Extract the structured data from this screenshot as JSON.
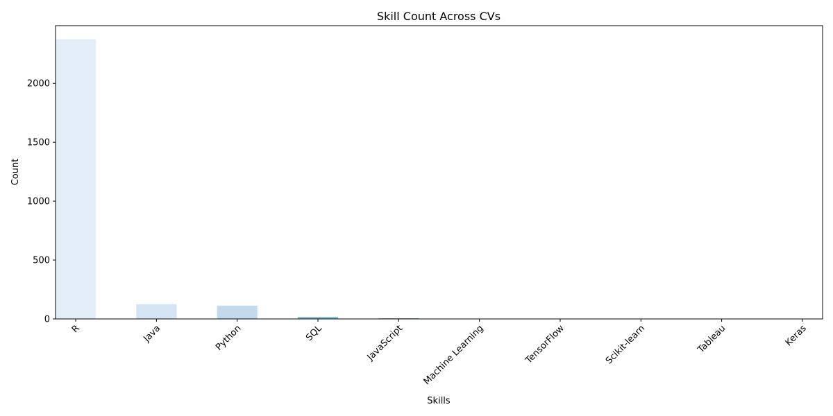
{
  "chart_data": {
    "type": "bar",
    "title": "Skill Count Across CVs",
    "xlabel": "Skills",
    "ylabel": "Count",
    "categories": [
      "R",
      "Java",
      "Python",
      "SQL",
      "JavaScript",
      "Machine Learning",
      "TensorFlow",
      "Scikit-learn",
      "Tableau",
      "Keras"
    ],
    "values": [
      2375,
      125,
      113,
      18,
      5,
      0,
      0,
      0,
      0,
      0
    ],
    "ylim": [
      0,
      2490
    ],
    "yticks": [
      0,
      500,
      1000,
      1500,
      2000
    ],
    "grid": false,
    "legend": "none",
    "bar_colors": [
      "#e3eef9",
      "#d4e4f4",
      "#c3d9ee",
      "#8fbfdc",
      "#5ba2d0",
      "#3383c0",
      "#1b68ae",
      "#0b4f95",
      "#0a3f7f",
      "#08306b"
    ],
    "tick_label_rotation_deg": 45
  }
}
